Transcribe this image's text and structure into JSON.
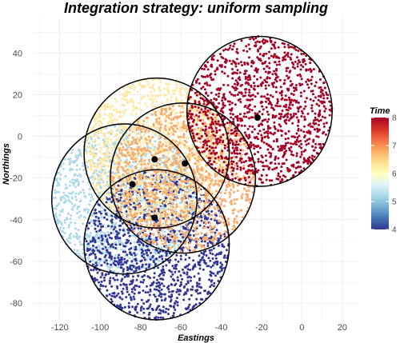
{
  "chart_data": {
    "type": "scatter",
    "title": "Integration strategy: uniform sampling",
    "xlabel": "Eastings",
    "ylabel": "Northings",
    "xlim": [
      -133,
      28
    ],
    "ylim": [
      -88,
      57
    ],
    "x_ticks": [
      -120,
      -100,
      -80,
      -60,
      -40,
      -20,
      0,
      20
    ],
    "y_ticks": [
      40,
      20,
      0,
      -20,
      -40,
      -60,
      -80
    ],
    "grid": true,
    "legend": {
      "title": "Time",
      "position": "right",
      "type": "colorbar",
      "range": [
        4,
        8
      ],
      "ticks": [
        8,
        7,
        6,
        5,
        4
      ],
      "colors": [
        "#313695",
        "#4575b4",
        "#74add1",
        "#abd9e9",
        "#e0f3f8",
        "#ffffbf",
        "#fee090",
        "#fdae61",
        "#f46d43",
        "#d73027",
        "#a50026"
      ]
    },
    "sampling_regions": [
      {
        "center_x": -88,
        "center_y": -30,
        "radius": 36,
        "time": 5.3,
        "color": "#abd9e9"
      },
      {
        "center_x": -72,
        "center_y": -52,
        "radius": 36,
        "time": 4,
        "color": "#313695"
      },
      {
        "center_x": -72,
        "center_y": -8,
        "radius": 36,
        "time": 6.2,
        "color": "#fee8a0"
      },
      {
        "center_x": -59,
        "center_y": -20,
        "radius": 36,
        "time": 6.8,
        "color": "#f9ab6c"
      },
      {
        "center_x": -21,
        "center_y": 12,
        "radius": 36,
        "time": 8,
        "color": "#a50026"
      }
    ],
    "observation_points": [
      {
        "x": -84,
        "y": -23
      },
      {
        "x": -73,
        "y": -11
      },
      {
        "x": -73,
        "y": -39
      },
      {
        "x": -58,
        "y": -13
      },
      {
        "x": -22,
        "y": 9
      }
    ],
    "points_per_region": 1300
  }
}
